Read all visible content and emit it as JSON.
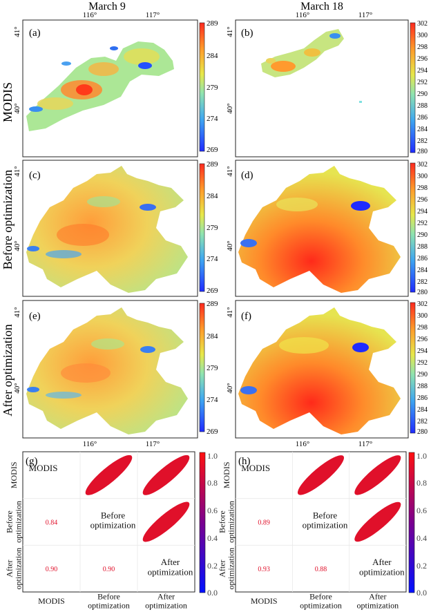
{
  "columns": [
    "March 9",
    "March 18"
  ],
  "rows": [
    "MODIS",
    "Before optimization",
    "After optimization"
  ],
  "tick_labels": {
    "lon": [
      "116°",
      "117°"
    ],
    "lat": [
      "41°",
      "40°"
    ]
  },
  "panel_labels": [
    "(a)",
    "(b)",
    "(c)",
    "(d)",
    "(e)",
    "(f)",
    "(g)",
    "(h)"
  ],
  "colorbars": {
    "march9": {
      "ticks": [
        "289",
        "284",
        "279",
        "274",
        "269"
      ],
      "range": [
        269,
        289
      ]
    },
    "march18": {
      "ticks": [
        "302",
        "300",
        "298",
        "296",
        "294",
        "292",
        "290",
        "288",
        "286",
        "284",
        "282",
        "280"
      ],
      "range": [
        280,
        302
      ]
    },
    "corr": {
      "ticks": [
        "1.0",
        "0.8",
        "0.6",
        "0.4",
        "0.2",
        "0.0"
      ],
      "range": [
        0,
        1
      ]
    }
  },
  "colors": {
    "low": "#1f2bff",
    "mid": "#e7e84a",
    "high": "#ff2a1f",
    "corr_high": "#e0102a",
    "corr_low": "#0010ff"
  },
  "corr_matrix": {
    "diag_labels": [
      "MODIS",
      "Before\noptimization",
      "After\noptimization"
    ],
    "x_labels": [
      "MODIS",
      "Before\noptimization",
      "After\noptimization"
    ],
    "y_labels": [
      "MODIS",
      "Before\noptimization",
      "After\noptimization"
    ],
    "g": {
      "values": [
        [
          "",
          "",
          ""
        ],
        [
          "0.84",
          "",
          ""
        ],
        [
          "0.90",
          "0.90",
          ""
        ]
      ]
    },
    "h": {
      "values": [
        [
          "",
          "",
          ""
        ],
        [
          "0.89",
          "",
          ""
        ],
        [
          "0.93",
          "0.88",
          ""
        ]
      ]
    }
  }
}
